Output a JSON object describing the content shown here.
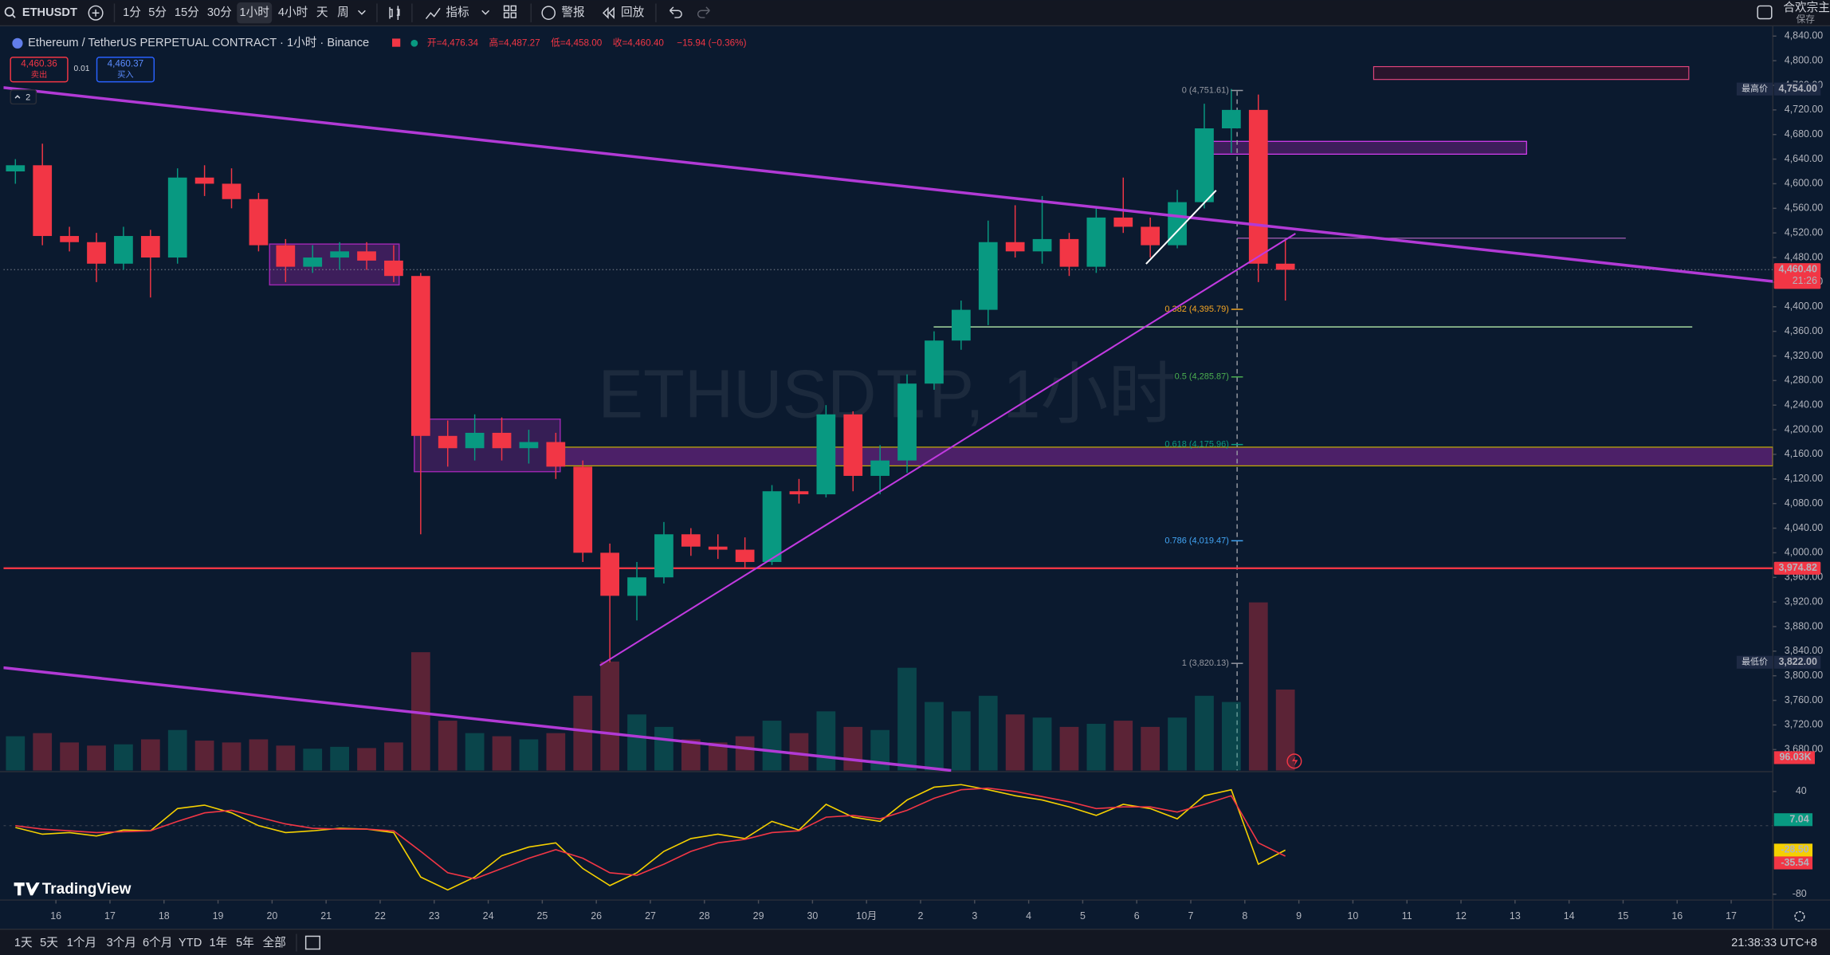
{
  "toolbar": {
    "symbol": "ETHUSDT",
    "intervals": [
      "1分",
      "5分",
      "15分",
      "30分",
      "1小时",
      "4小时",
      "天",
      "周"
    ],
    "active_interval": 4,
    "indicators": "指标",
    "alerts": "警报",
    "replay": "回放",
    "user": "合欢宗主",
    "save": "保存"
  },
  "legend": {
    "title": "Ethereum / TetherUS PERPETUAL CONTRACT · 1小时 · Binance",
    "open": "开=4,476.34",
    "high": "高=4,487.27",
    "low": "低=4,458.00",
    "close": "收=4,460.40",
    "change": "−15.94 (−0.36%)",
    "sell_price": "4,460.36",
    "sell": "卖出",
    "spread": "0.01",
    "buy_price": "4,460.37",
    "buy": "买入",
    "indicator_count": "2"
  },
  "watermark": "ETHUSDT.P, 1小时",
  "logo": "TradingView",
  "chart_data": {
    "type": "candlestick",
    "up_color": "#089981",
    "down_color": "#f23645",
    "grid": false,
    "xlim": [
      -0.97,
      31.77
    ],
    "xticks": [
      {
        "value": 0,
        "label": "16"
      },
      {
        "value": 1,
        "label": "17"
      },
      {
        "value": 2,
        "label": "18"
      },
      {
        "value": 3,
        "label": "19"
      },
      {
        "value": 4,
        "label": "20"
      },
      {
        "value": 5,
        "label": "21"
      },
      {
        "value": 6,
        "label": "22"
      },
      {
        "value": 7,
        "label": "23"
      },
      {
        "value": 8,
        "label": "24"
      },
      {
        "value": 9,
        "label": "25"
      },
      {
        "value": 10,
        "label": "26"
      },
      {
        "value": 11,
        "label": "27"
      },
      {
        "value": 12,
        "label": "28"
      },
      {
        "value": 13,
        "label": "29"
      },
      {
        "value": 14,
        "label": "30"
      },
      {
        "value": 15,
        "label": "10月"
      },
      {
        "value": 16,
        "label": "2"
      },
      {
        "value": 17,
        "label": "3"
      },
      {
        "value": 18,
        "label": "4"
      },
      {
        "value": 19,
        "label": "5"
      },
      {
        "value": 20,
        "label": "6"
      },
      {
        "value": 21,
        "label": "7"
      },
      {
        "value": 22,
        "label": "8"
      },
      {
        "value": 23,
        "label": "9"
      },
      {
        "value": 24,
        "label": "10"
      },
      {
        "value": 25,
        "label": "11"
      },
      {
        "value": 26,
        "label": "12"
      },
      {
        "value": 27,
        "label": "13"
      },
      {
        "value": 28,
        "label": "14"
      },
      {
        "value": 29,
        "label": "15"
      },
      {
        "value": 30,
        "label": "16"
      },
      {
        "value": 31,
        "label": "17"
      }
    ],
    "ylim": [
      3646,
      4853
    ],
    "yticks": [
      {
        "value": 4840,
        "label": "4,840.00"
      },
      {
        "value": 4800,
        "label": "4,800.00"
      },
      {
        "value": 4760,
        "label": "4,760.00"
      },
      {
        "value": 4720,
        "label": "4,720.00"
      },
      {
        "value": 4680,
        "label": "4,680.00"
      },
      {
        "value": 4640,
        "label": "4,640.00"
      },
      {
        "value": 4600,
        "label": "4,600.00"
      },
      {
        "value": 4560,
        "label": "4,560.00"
      },
      {
        "value": 4520,
        "label": "4,520.00"
      },
      {
        "value": 4480,
        "label": "4,480.00"
      },
      {
        "value": 4440,
        "label": "4,440.00"
      },
      {
        "value": 4400,
        "label": "4,400.00"
      },
      {
        "value": 4360,
        "label": "4,360.00"
      },
      {
        "value": 4320,
        "label": "4,320.00"
      },
      {
        "value": 4280,
        "label": "4,280.00"
      },
      {
        "value": 4240,
        "label": "4,240.00"
      },
      {
        "value": 4200,
        "label": "4,200.00"
      },
      {
        "value": 4160,
        "label": "4,160.00"
      },
      {
        "value": 4120,
        "label": "4,120.00"
      },
      {
        "value": 4080,
        "label": "4,080.00"
      },
      {
        "value": 4040,
        "label": "4,040.00"
      },
      {
        "value": 4000,
        "label": "4,000.00"
      },
      {
        "value": 3960,
        "label": "3,960.00"
      },
      {
        "value": 3920,
        "label": "3,920.00"
      },
      {
        "value": 3880,
        "label": "3,880.00"
      },
      {
        "value": 3840,
        "label": "3,840.00"
      },
      {
        "value": 3800,
        "label": "3,800.00"
      },
      {
        "value": 3760,
        "label": "3,760.00"
      },
      {
        "value": 3720,
        "label": "3,720.00"
      },
      {
        "value": 3680,
        "label": "3,680.00"
      }
    ],
    "x": [
      -0.75,
      -0.25,
      0.25,
      0.75,
      1.25,
      1.75,
      2.25,
      2.75,
      3.25,
      3.75,
      4.25,
      4.75,
      5.25,
      5.75,
      6.25,
      6.75,
      7.25,
      7.75,
      8.25,
      8.75,
      9.25,
      9.75,
      10.25,
      10.75,
      11.25,
      11.75,
      12.25,
      12.75,
      13.25,
      13.75,
      14.25,
      14.75,
      15.25,
      15.75,
      16.25,
      16.75,
      17.25,
      17.75,
      18.25,
      18.75,
      19.25,
      19.75,
      20.25,
      20.75,
      21.25,
      21.75,
      22.25,
      22.75
    ],
    "open": [
      4620,
      4630,
      4515,
      4505,
      4470,
      4515,
      4480,
      4610,
      4600,
      4575,
      4500,
      4465,
      4480,
      4490,
      4475,
      4450,
      4190,
      4170,
      4195,
      4170,
      4180,
      4140,
      4000,
      3930,
      3960,
      4030,
      4010,
      4005,
      3985,
      4100,
      4095,
      4225,
      4125,
      4150,
      4275,
      4345,
      4395,
      4505,
      4490,
      4510,
      4465,
      4545,
      4530,
      4500,
      4570,
      4690,
      4720,
      4470
    ],
    "high": [
      4640,
      4665,
      4530,
      4520,
      4530,
      4525,
      4625,
      4630,
      4625,
      4585,
      4510,
      4500,
      4505,
      4505,
      4500,
      4455,
      4215,
      4225,
      4220,
      4200,
      4195,
      4150,
      4015,
      3985,
      4050,
      4040,
      4030,
      4025,
      4110,
      4120,
      4240,
      4230,
      4175,
      4290,
      4360,
      4410,
      4540,
      4565,
      4580,
      4520,
      4560,
      4610,
      4545,
      4590,
      4730,
      4754,
      4745,
      4510
    ],
    "low": [
      4600,
      4500,
      4490,
      4440,
      4460,
      4415,
      4470,
      4580,
      4560,
      4490,
      4440,
      4455,
      4460,
      4460,
      4440,
      4030,
      4140,
      4150,
      4150,
      4145,
      4120,
      3985,
      3822,
      3890,
      3950,
      3995,
      3990,
      3975,
      3980,
      4080,
      4090,
      4100,
      4095,
      4130,
      4265,
      4330,
      4370,
      4480,
      4470,
      4450,
      4455,
      4520,
      4480,
      4495,
      4560,
      4650,
      4440,
      4410
    ],
    "close": [
      4630,
      4515,
      4505,
      4470,
      4515,
      4480,
      4610,
      4600,
      4575,
      4500,
      4465,
      4480,
      4490,
      4475,
      4450,
      4190,
      4170,
      4195,
      4170,
      4180,
      4140,
      4000,
      3930,
      3960,
      4030,
      4010,
      4005,
      3985,
      4100,
      4095,
      4225,
      4125,
      4150,
      4275,
      4345,
      4395,
      4505,
      4490,
      4510,
      4465,
      4545,
      4530,
      4500,
      4570,
      4690,
      4720,
      4470,
      4460
    ],
    "volume": [
      55,
      60,
      45,
      40,
      42,
      50,
      65,
      48,
      45,
      50,
      40,
      35,
      38,
      36,
      45,
      190,
      80,
      60,
      55,
      50,
      60,
      120,
      175,
      90,
      70,
      50,
      45,
      55,
      80,
      60,
      95,
      70,
      65,
      165,
      110,
      95,
      120,
      90,
      85,
      70,
      75,
      80,
      70,
      85,
      120,
      110,
      270,
      130
    ],
    "volume_ylim": [
      0,
      300
    ],
    "volume_label": "96.03K",
    "last_price": {
      "value": 4460.4,
      "label": "4,460.40",
      "time": "21:26"
    },
    "high_mark": {
      "value": 4754,
      "label": "4,754.00",
      "tag": "最高价"
    },
    "low_mark": {
      "value": 3822,
      "label": "3,822.00",
      "tag": "最低价"
    },
    "hline": {
      "value": 3974.82,
      "label": "3,974.82",
      "color": "#f23645"
    },
    "fib": [
      {
        "value": 4751.61,
        "label": "0 (4,751.61)",
        "color": "#9598a1"
      },
      {
        "value": 4395.79,
        "label": "0.382 (4,395.79)",
        "color": "#f5a623"
      },
      {
        "value": 4285.87,
        "label": "0.5 (4,285.87)",
        "color": "#4caf50"
      },
      {
        "value": 4175.96,
        "label": "0.618 (4,175.96)",
        "color": "#089981"
      },
      {
        "value": 4019.47,
        "label": "0.786 (4,019.47)",
        "color": "#42a5f5"
      },
      {
        "value": 3820.13,
        "label": "1 (3,820.13)",
        "color": "#9598a1"
      }
    ],
    "macd": {
      "ylim": [
        -85.5,
        61.8
      ],
      "yticks": [
        40,
        -80
      ],
      "series": [
        {
          "color": "#f5d000",
          "values": [
            -2,
            -10,
            -8,
            -12,
            -5,
            -6,
            20,
            24,
            15,
            0,
            -8,
            -6,
            -3,
            -4,
            -8,
            -60,
            -75,
            -60,
            -35,
            -25,
            -20,
            -50,
            -70,
            -55,
            -30,
            -15,
            -10,
            -15,
            5,
            -5,
            25,
            10,
            5,
            30,
            45,
            48,
            42,
            35,
            30,
            22,
            12,
            25,
            20,
            8,
            35,
            42,
            -45,
            -28.5
          ]
        },
        {
          "color": "#f23645",
          "values": [
            0,
            -4,
            -6,
            -8,
            -7,
            -6,
            5,
            15,
            18,
            10,
            2,
            -3,
            -4,
            -4,
            -6,
            -30,
            -55,
            -62,
            -50,
            -38,
            -28,
            -38,
            -55,
            -58,
            -45,
            -30,
            -20,
            -16,
            -8,
            -6,
            10,
            12,
            8,
            18,
            32,
            42,
            44,
            40,
            34,
            28,
            20,
            22,
            22,
            16,
            25,
            35,
            -20,
            -35.54
          ]
        }
      ],
      "labels": [
        {
          "value": 7.04,
          "label": "7.04",
          "color": "#089981"
        },
        {
          "value": -28.5,
          "label": "-28.50",
          "color": "#f5d000"
        },
        {
          "value": -35.54,
          "label": "-35.54",
          "color": "#f23645"
        }
      ]
    }
  },
  "bottom_bar": {
    "ranges": [
      "1天",
      "5天",
      "1个月",
      "3个月",
      "6个月",
      "YTD",
      "1年",
      "5年",
      "全部"
    ],
    "clock": "21:38:33 UTC+8"
  }
}
